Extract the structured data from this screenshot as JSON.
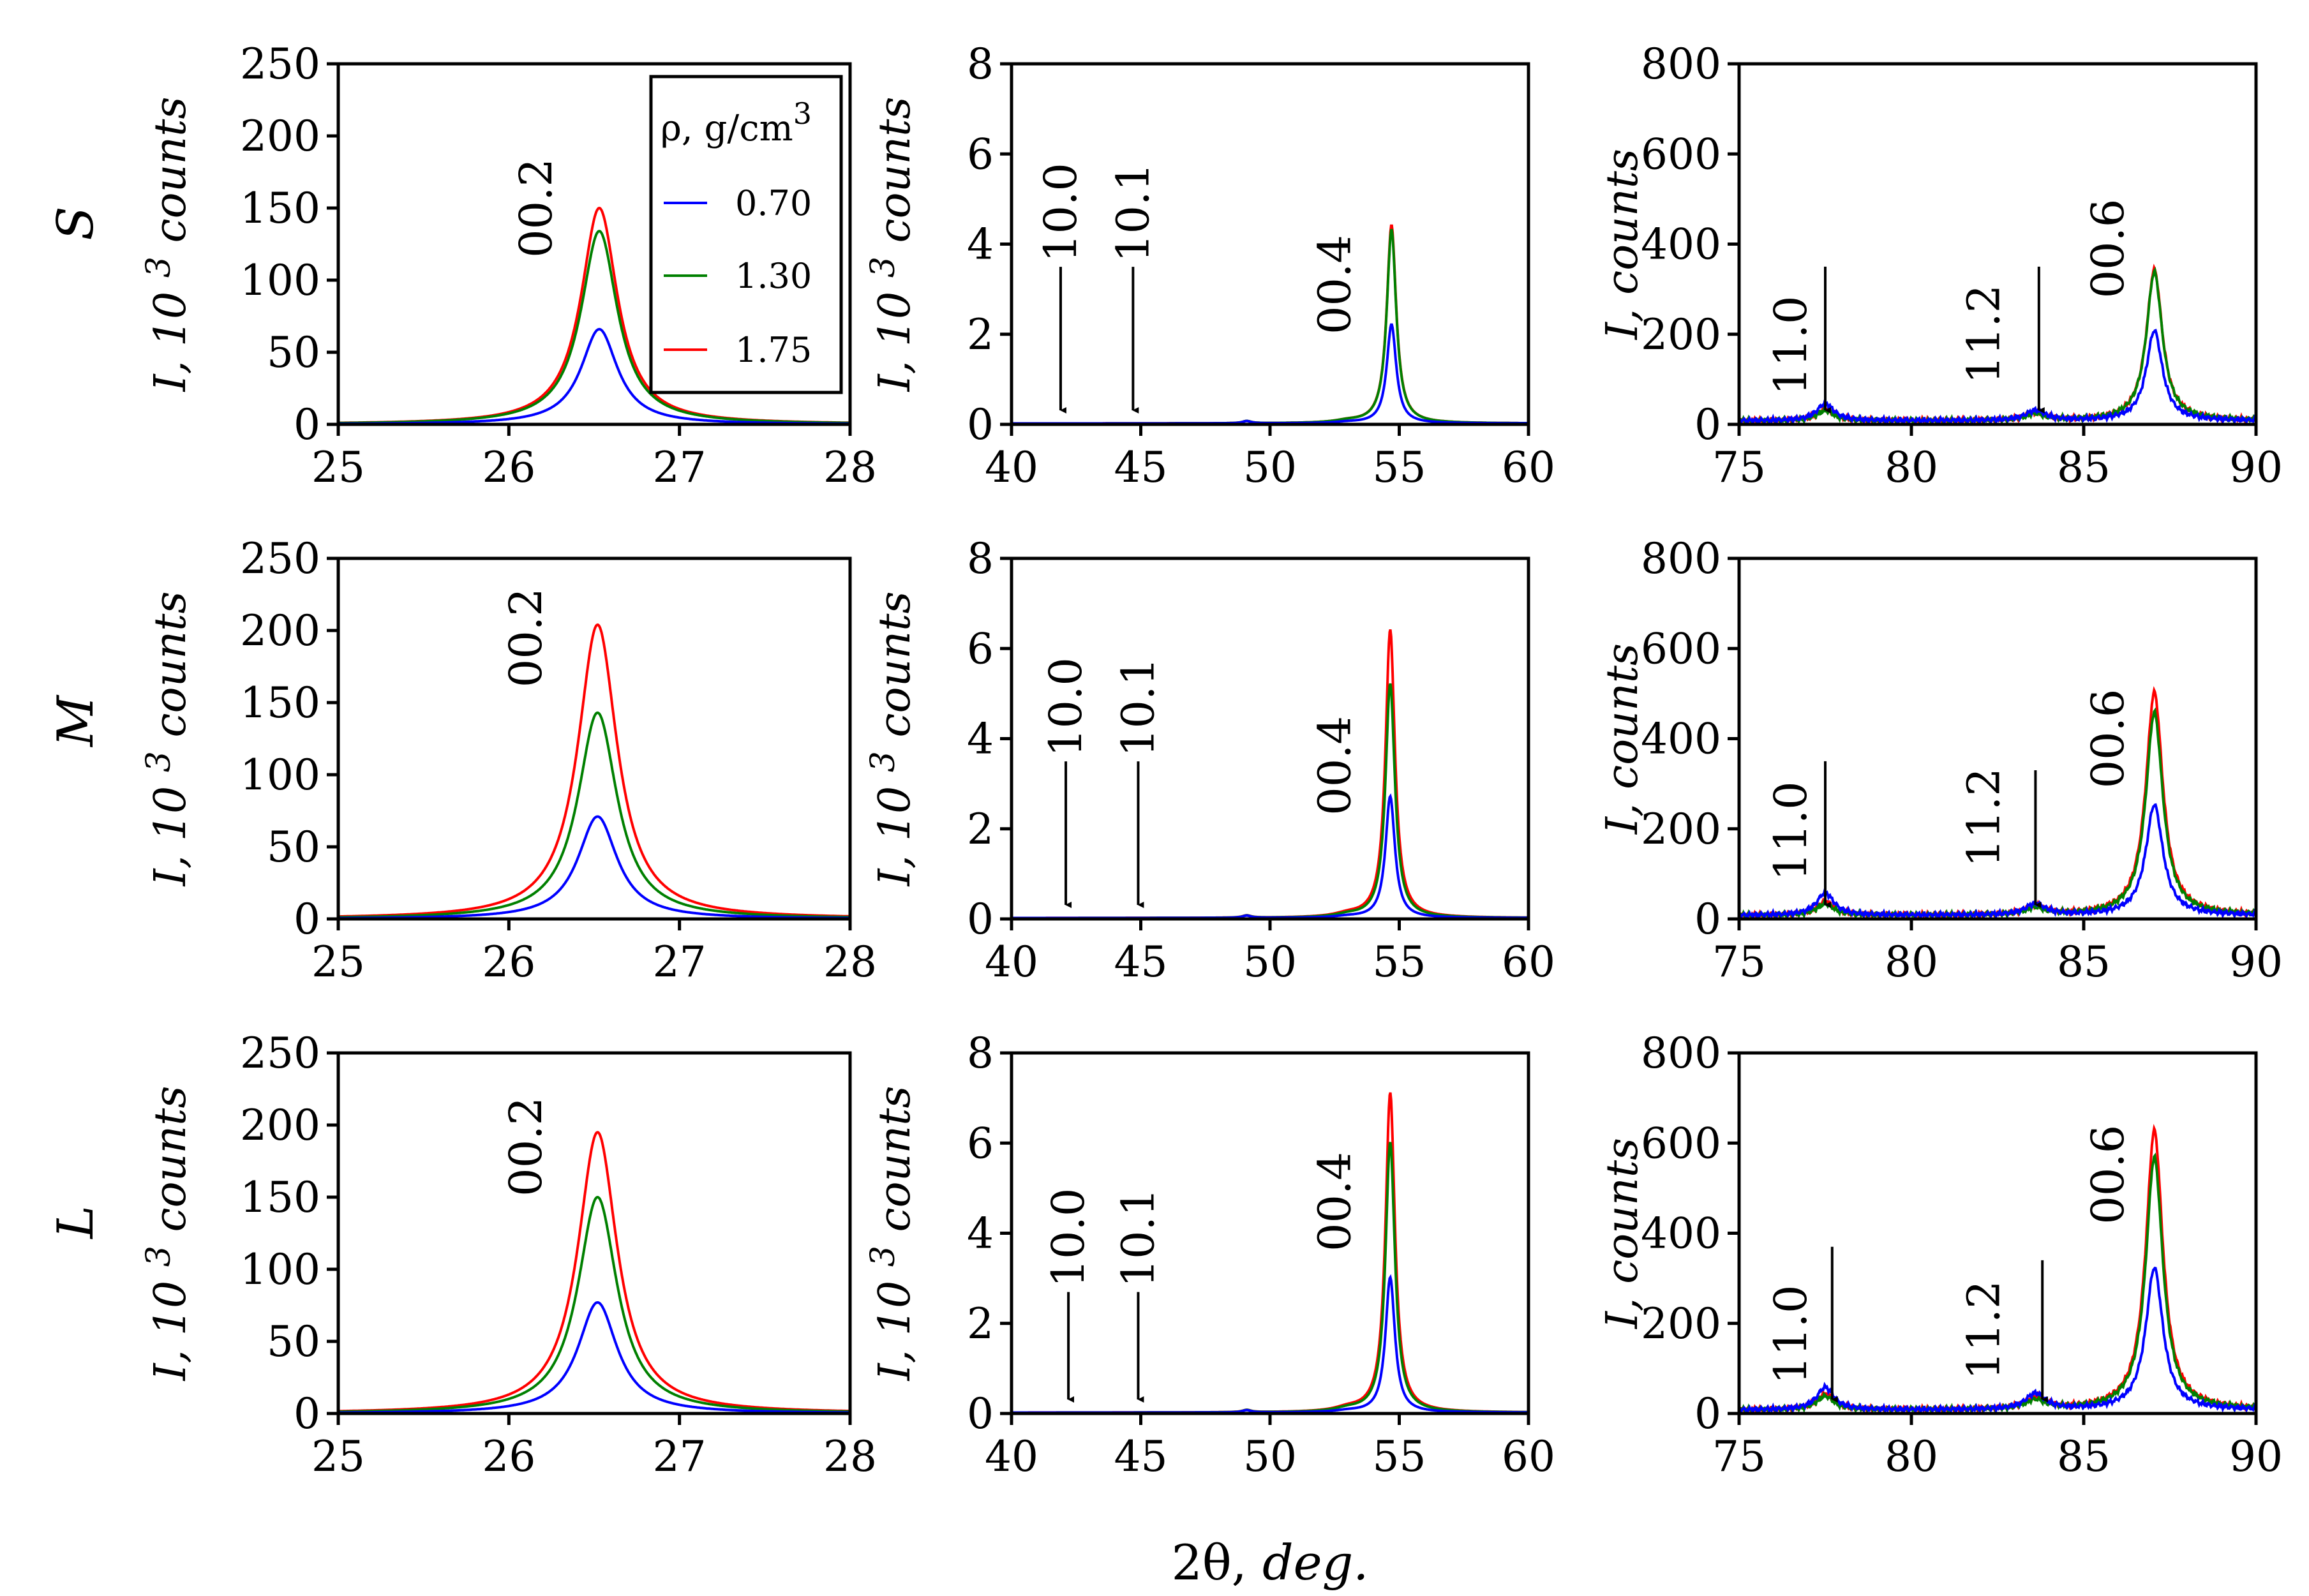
{
  "figure": {
    "x_title_symbol": "2θ,",
    "x_title_unit": "deg.",
    "legend": {
      "title": "ρ, g/cm",
      "title_sup": "3",
      "entries": [
        {
          "label": "0.70",
          "color": "#0000ff"
        },
        {
          "label": "1.30",
          "color": "#008000"
        },
        {
          "label": "1.75",
          "color": "#ff0000"
        }
      ]
    },
    "row_labels": [
      "S",
      "M",
      "L"
    ],
    "y_label_kilo_main": "I, 10",
    "y_label_kilo_sup": "3",
    "y_label_kilo_tail": "counts",
    "y_label_counts": "I, counts"
  },
  "chart_data": [
    {
      "type": "line",
      "row": "S",
      "col": 1,
      "xlim": [
        25,
        28
      ],
      "ylim": [
        0,
        250
      ],
      "xticks": [
        "25",
        "26",
        "27",
        "28"
      ],
      "yticks": [
        "0",
        "50",
        "100",
        "150",
        "200",
        "250"
      ],
      "ylabel": "I, 10^3 counts",
      "xlabel": "2θ, deg.",
      "peak_center": 26.53,
      "width": 0.13,
      "series": [
        {
          "name": "0.70",
          "peak": 66
        },
        {
          "name": "1.30",
          "peak": 134
        },
        {
          "name": "1.75",
          "peak": 150
        }
      ],
      "annotations": [
        {
          "text": "00.2",
          "x": 26.16,
          "y": 150,
          "arrow": false
        }
      ]
    },
    {
      "type": "line",
      "row": "S",
      "col": 2,
      "xlim": [
        40,
        60
      ],
      "ylim": [
        0,
        8
      ],
      "xticks": [
        "40",
        "45",
        "50",
        "55",
        "60"
      ],
      "yticks": [
        "0",
        "2",
        "4",
        "6",
        "8"
      ],
      "ylabel": "I, 10^3 counts",
      "xlabel": "2θ, deg.",
      "peak_center": 54.7,
      "width": 0.22,
      "series": [
        {
          "name": "0.70",
          "peak": 2.2
        },
        {
          "name": "1.30",
          "peak": 4.3
        },
        {
          "name": "1.75",
          "peak": 4.4
        }
      ],
      "annotations": [
        {
          "text": "10.0",
          "x": 41.9,
          "y": 4.7,
          "arrow": true
        },
        {
          "text": "10.1",
          "x": 44.7,
          "y": 4.7,
          "arrow": true
        },
        {
          "text": "00.4",
          "x": 52.5,
          "y": 3.1,
          "arrow": false
        }
      ]
    },
    {
      "type": "line",
      "row": "S",
      "col": 3,
      "xlim": [
        75,
        90
      ],
      "ylim": [
        0,
        800
      ],
      "xticks": [
        "75",
        "80",
        "85",
        "90"
      ],
      "yticks": [
        "0",
        "200",
        "400",
        "600",
        "800"
      ],
      "ylabel": "I, counts",
      "xlabel": "2θ, deg.",
      "peak_center": 87.05,
      "width": 0.28,
      "series": [
        {
          "name": "0.70",
          "peak": 200,
          "p110": 38,
          "p112": 22
        },
        {
          "name": "1.30",
          "peak": 330,
          "p110": 22,
          "p112": 14
        },
        {
          "name": "1.75",
          "peak": 335,
          "p110": 25,
          "p112": 16
        }
      ],
      "annotations": [
        {
          "text": "11.0",
          "x": 76.5,
          "y": 175,
          "arrow": false
        },
        {
          "text": "11.2",
          "x": 82.1,
          "y": 200,
          "arrow": false
        },
        {
          "text": "00.6",
          "x": 85.7,
          "y": 390,
          "arrow": false
        },
        {
          "text": "",
          "x": 77.5,
          "y": 350,
          "arrow": true
        },
        {
          "text": "",
          "x": 83.7,
          "y": 350,
          "arrow": true
        }
      ]
    },
    {
      "type": "line",
      "row": "M",
      "col": 1,
      "xlim": [
        25,
        28
      ],
      "ylim": [
        0,
        250
      ],
      "xticks": [
        "25",
        "26",
        "27",
        "28"
      ],
      "yticks": [
        "0",
        "50",
        "100",
        "150",
        "200",
        "250"
      ],
      "ylabel": "I, 10^3 counts",
      "xlabel": "2θ, deg.",
      "peak_center": 26.52,
      "width": 0.14,
      "series": [
        {
          "name": "0.70",
          "peak": 71
        },
        {
          "name": "1.30",
          "peak": 143
        },
        {
          "name": "1.75",
          "peak": 204
        }
      ],
      "annotations": [
        {
          "text": "00.2",
          "x": 26.1,
          "y": 195,
          "arrow": false
        }
      ]
    },
    {
      "type": "line",
      "row": "M",
      "col": 2,
      "xlim": [
        40,
        60
      ],
      "ylim": [
        0,
        8
      ],
      "xticks": [
        "40",
        "45",
        "50",
        "55",
        "60"
      ],
      "yticks": [
        "0",
        "2",
        "4",
        "6",
        "8"
      ],
      "ylabel": "I, 10^3 counts",
      "xlabel": "2θ, deg.",
      "peak_center": 54.65,
      "width": 0.22,
      "series": [
        {
          "name": "0.70",
          "peak": 2.7
        },
        {
          "name": "1.30",
          "peak": 5.2
        },
        {
          "name": "1.75",
          "peak": 6.4
        }
      ],
      "annotations": [
        {
          "text": "10.0",
          "x": 42.1,
          "y": 4.7,
          "arrow": true
        },
        {
          "text": "10.1",
          "x": 44.9,
          "y": 4.7,
          "arrow": true
        },
        {
          "text": "00.4",
          "x": 52.5,
          "y": 3.4,
          "arrow": false
        }
      ]
    },
    {
      "type": "line",
      "row": "M",
      "col": 3,
      "xlim": [
        75,
        90
      ],
      "ylim": [
        0,
        800
      ],
      "xticks": [
        "75",
        "80",
        "85",
        "90"
      ],
      "yticks": [
        "0",
        "200",
        "400",
        "600",
        "800"
      ],
      "ylabel": "I, counts",
      "xlabel": "2θ, deg.",
      "peak_center": 87.05,
      "width": 0.3,
      "series": [
        {
          "name": "0.70",
          "peak": 245,
          "p110": 50,
          "p112": 25
        },
        {
          "name": "1.30",
          "peak": 450,
          "p110": 25,
          "p112": 15
        },
        {
          "name": "1.75",
          "peak": 495,
          "p110": 30,
          "p112": 18
        }
      ],
      "annotations": [
        {
          "text": "11.0",
          "x": 76.5,
          "y": 195,
          "arrow": false
        },
        {
          "text": "11.2",
          "x": 82.1,
          "y": 225,
          "arrow": false
        },
        {
          "text": "00.6",
          "x": 85.7,
          "y": 400,
          "arrow": false
        },
        {
          "text": "",
          "x": 77.5,
          "y": 350,
          "arrow": true
        },
        {
          "text": "",
          "x": 83.6,
          "y": 330,
          "arrow": true
        }
      ]
    },
    {
      "type": "line",
      "row": "L",
      "col": 1,
      "xlim": [
        25,
        28
      ],
      "ylim": [
        0,
        250
      ],
      "xticks": [
        "25",
        "26",
        "27",
        "28"
      ],
      "yticks": [
        "0",
        "50",
        "100",
        "150",
        "200",
        "250"
      ],
      "ylabel": "I, 10^3 counts",
      "xlabel": "2θ, deg.",
      "peak_center": 26.52,
      "width": 0.14,
      "series": [
        {
          "name": "0.70",
          "peak": 77
        },
        {
          "name": "1.30",
          "peak": 150
        },
        {
          "name": "1.75",
          "peak": 195
        }
      ],
      "annotations": [
        {
          "text": "00.2",
          "x": 26.1,
          "y": 185,
          "arrow": false
        }
      ]
    },
    {
      "type": "line",
      "row": "L",
      "col": 2,
      "xlim": [
        40,
        60
      ],
      "ylim": [
        0,
        8
      ],
      "xticks": [
        "40",
        "45",
        "50",
        "55",
        "60"
      ],
      "yticks": [
        "0",
        "2",
        "4",
        "6",
        "8"
      ],
      "ylabel": "I, 10^3 counts",
      "xlabel": "2θ, deg.",
      "peak_center": 54.65,
      "width": 0.22,
      "series": [
        {
          "name": "0.70",
          "peak": 3.0
        },
        {
          "name": "1.30",
          "peak": 6.0
        },
        {
          "name": "1.75",
          "peak": 7.1
        }
      ],
      "annotations": [
        {
          "text": "10.0",
          "x": 42.2,
          "y": 3.9,
          "arrow": true
        },
        {
          "text": "10.1",
          "x": 44.9,
          "y": 3.9,
          "arrow": true
        },
        {
          "text": "00.4",
          "x": 52.5,
          "y": 4.7,
          "arrow": false
        }
      ]
    },
    {
      "type": "line",
      "row": "L",
      "col": 3,
      "xlim": [
        75,
        90
      ],
      "ylim": [
        0,
        800
      ],
      "xticks": [
        "75",
        "80",
        "85",
        "90"
      ],
      "yticks": [
        "0",
        "200",
        "400",
        "600",
        "800"
      ],
      "ylabel": "I, counts",
      "xlabel": "2θ, deg.",
      "peak_center": 87.05,
      "width": 0.3,
      "series": [
        {
          "name": "0.70",
          "peak": 315,
          "p110": 50,
          "p112": 35
        },
        {
          "name": "1.30",
          "peak": 560,
          "p110": 30,
          "p112": 20
        },
        {
          "name": "1.75",
          "peak": 620,
          "p110": 35,
          "p112": 25
        }
      ],
      "annotations": [
        {
          "text": "11.0",
          "x": 76.5,
          "y": 175,
          "arrow": false
        },
        {
          "text": "11.2",
          "x": 82.1,
          "y": 185,
          "arrow": false
        },
        {
          "text": "00.6",
          "x": 85.7,
          "y": 530,
          "arrow": false
        },
        {
          "text": "",
          "x": 77.7,
          "y": 370,
          "arrow": true
        },
        {
          "text": "",
          "x": 83.8,
          "y": 340,
          "arrow": true
        }
      ]
    }
  ]
}
